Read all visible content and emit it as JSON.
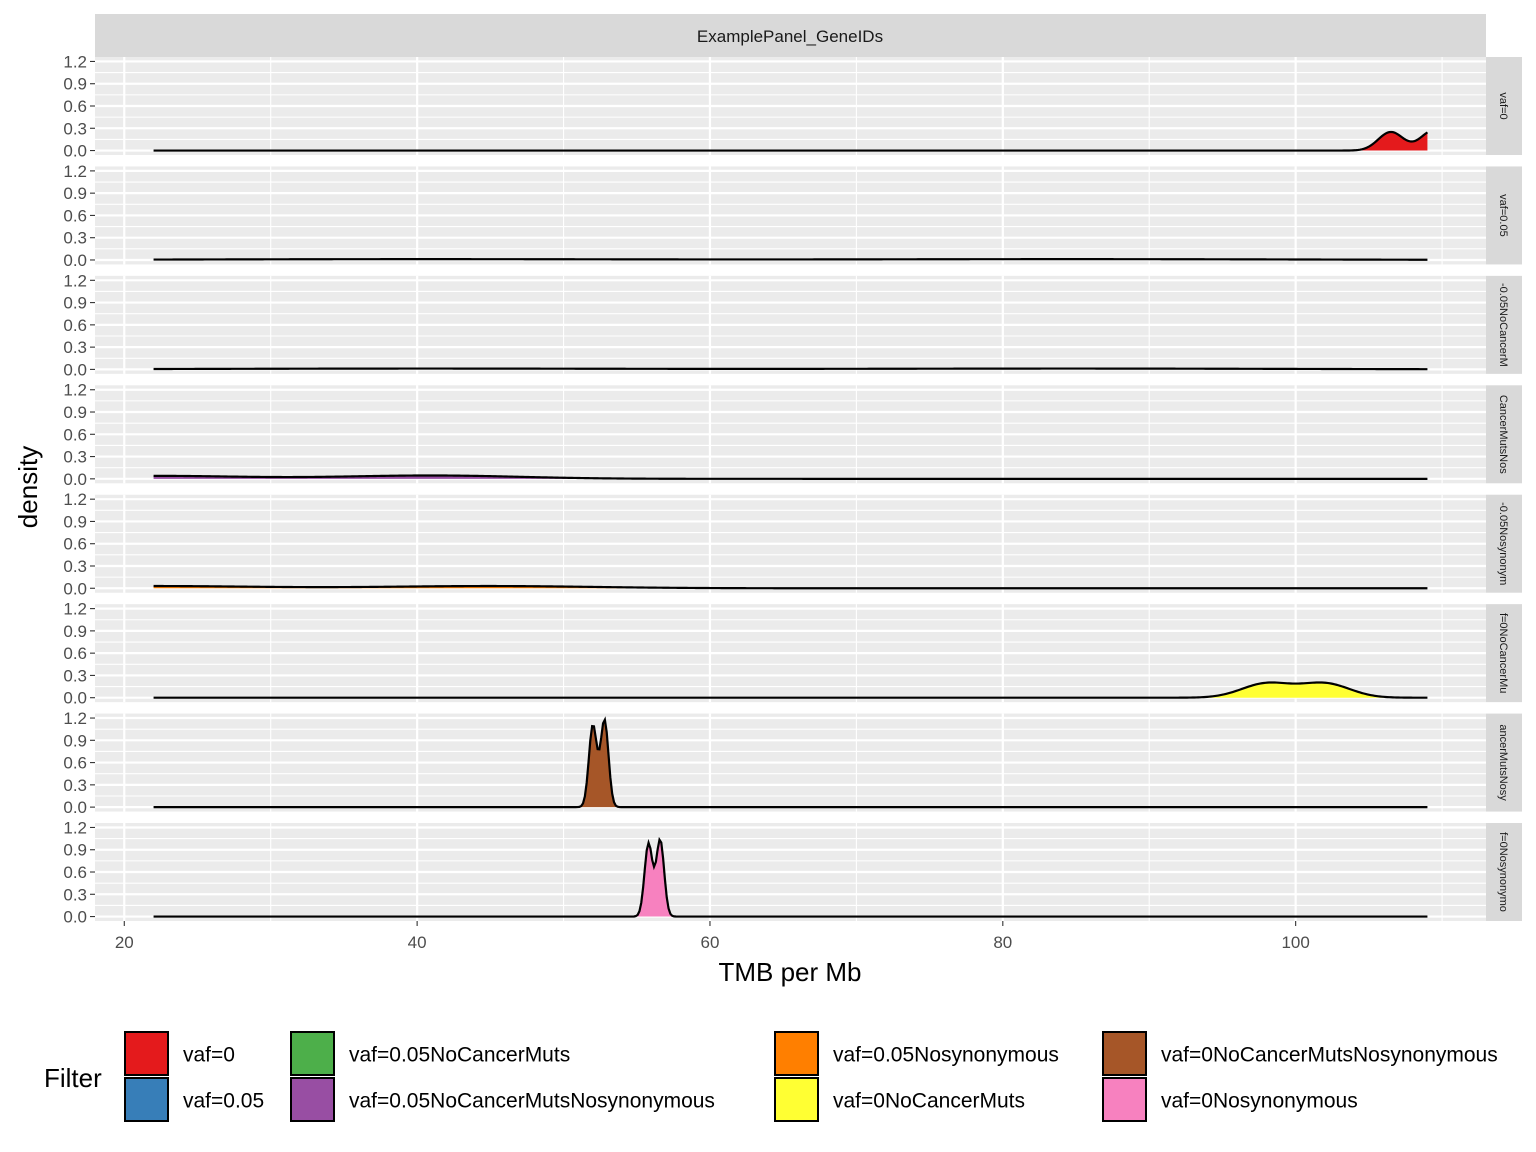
{
  "chart_data": {
    "type": "area",
    "facet_title": "ExamplePanel_GeneIDs",
    "xlabel": "TMB per Mb",
    "ylabel": "density",
    "xlim": [
      18,
      113
    ],
    "ylim": [
      -0.06,
      1.26
    ],
    "x_ticks": [
      20,
      40,
      60,
      80,
      100
    ],
    "y_ticks": [
      0.0,
      0.3,
      0.6,
      0.9,
      1.2
    ],
    "y_tick_labels": [
      "0.0",
      "0.3",
      "0.6",
      "0.9",
      "1.2"
    ],
    "x_range": [
      22,
      109
    ],
    "grid": true,
    "legend_title": "Filter",
    "legend_position": "bottom",
    "series": [
      {
        "name": "vaf=0",
        "strip_label": "vaf=0",
        "color": "#E41A1C",
        "bumps": [
          {
            "mu": 106.5,
            "sd": 0.85,
            "h": 0.25
          },
          {
            "mu": 109.4,
            "sd": 0.85,
            "h": 0.27
          }
        ]
      },
      {
        "name": "vaf=0.05",
        "strip_label": "vaf=0.05",
        "color": "#377EB8",
        "bumps": [
          {
            "mu": 40,
            "sd": 15,
            "h": 0.011
          },
          {
            "mu": 85,
            "sd": 15,
            "h": 0.011
          }
        ]
      },
      {
        "name": "vaf=0.05NoCancerMuts",
        "strip_label": "-0.05NoCancerM",
        "color": "#4DAF4A",
        "bumps": [
          {
            "mu": 40,
            "sd": 15,
            "h": 0.011
          },
          {
            "mu": 85,
            "sd": 15,
            "h": 0.011
          }
        ]
      },
      {
        "name": "vaf=0.05NoCancerMutsNosynonymous",
        "strip_label": "CancerMutsNos",
        "color": "#984EA3",
        "bumps": [
          {
            "mu": 22,
            "sd": 6,
            "h": 0.04
          },
          {
            "mu": 41,
            "sd": 6,
            "h": 0.045
          }
        ]
      },
      {
        "name": "vaf=0.05Nosynonymous",
        "strip_label": "-0.05Nosynonym",
        "color": "#FF7F00",
        "bumps": [
          {
            "mu": 22,
            "sd": 7,
            "h": 0.03
          },
          {
            "mu": 45,
            "sd": 7,
            "h": 0.03
          }
        ]
      },
      {
        "name": "vaf=0NoCancerMuts",
        "strip_label": "f=0NoCancerMu",
        "color": "#FFFF33",
        "bumps": [
          {
            "mu": 98,
            "sd": 1.7,
            "h": 0.19
          },
          {
            "mu": 102,
            "sd": 1.7,
            "h": 0.19
          }
        ]
      },
      {
        "name": "vaf=0NoCancerMutsNosynonymous",
        "strip_label": "ancerMutsNosy",
        "color": "#A65628",
        "bumps": [
          {
            "mu": 52.0,
            "sd": 0.27,
            "h": 1.1
          },
          {
            "mu": 52.8,
            "sd": 0.27,
            "h": 1.17
          }
        ]
      },
      {
        "name": "vaf=0Nosynonymous",
        "strip_label": "f=0Nosynonymo",
        "color": "#F781BF",
        "bumps": [
          {
            "mu": 55.8,
            "sd": 0.27,
            "h": 0.98
          },
          {
            "mu": 56.6,
            "sd": 0.27,
            "h": 1.03
          }
        ]
      }
    ]
  }
}
